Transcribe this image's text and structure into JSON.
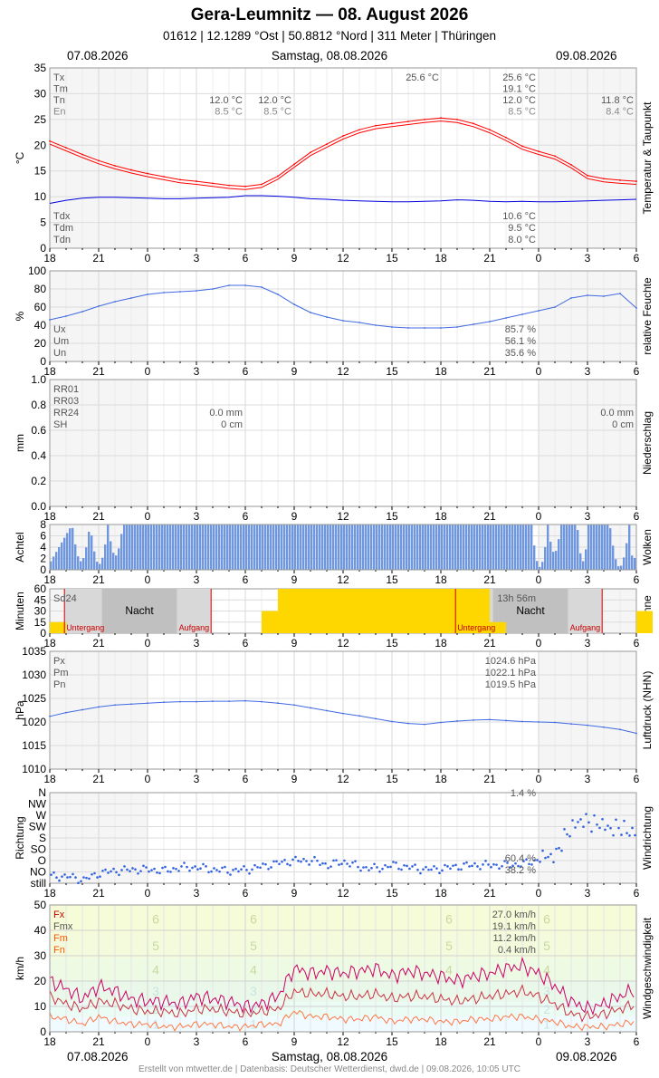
{
  "title": "Gera-Leumnitz  —  08. August 2026",
  "subtitle": "01612  |  12.1289 °Ost  |  50.8812 °Nord  |  311 Meter  |  Thüringen",
  "dates": {
    "left": "07.08.2026",
    "center": "Samstag, 08.08.2026",
    "right": "09.08.2026"
  },
  "footer": "Erstellt von mtwetter.de | Datenbasis: Deutscher Wetterdienst, dwd.de | 09.08.2026, 10:05 UTC",
  "x_ticks": [
    "18",
    "21",
    "0",
    "3",
    "6",
    "9",
    "12",
    "15",
    "18",
    "21",
    "0",
    "3",
    "6"
  ],
  "colors": {
    "temp": "#ff0000",
    "dew": "#0000dd",
    "humidity": "#4169e1",
    "clouds": "#6f97e0",
    "sun": "#ffd700",
    "pressure": "#4169e1",
    "fx": "#cc0066",
    "fmx": "#cc3344",
    "fm": "#ff7744"
  },
  "chart_data": [
    {
      "id": "temperature",
      "type": "line",
      "ylabel": "°C",
      "side_label": "Temperatur & Taupunkt",
      "ylim": [
        0,
        35
      ],
      "yticks": [
        "0",
        "5",
        "10",
        "15",
        "20",
        "25",
        "30",
        "35"
      ],
      "x": [
        18,
        19,
        20,
        21,
        22,
        23,
        24,
        25,
        26,
        27,
        28,
        29,
        30,
        31,
        32,
        33,
        34,
        35,
        36,
        37,
        38,
        39,
        40,
        41,
        42,
        43,
        44,
        45,
        46,
        47,
        48,
        49,
        50,
        51,
        52,
        53,
        54
      ],
      "series": [
        {
          "name": "Temperatur",
          "values": [
            20.8,
            19.5,
            18.2,
            17.0,
            16.0,
            15.2,
            14.5,
            13.9,
            13.3,
            13.0,
            12.6,
            12.2,
            12.0,
            12.4,
            14.0,
            16.3,
            18.6,
            20.2,
            21.8,
            23.0,
            23.8,
            24.2,
            24.6,
            25.0,
            25.3,
            25.0,
            24.2,
            23.0,
            21.5,
            19.8,
            18.8,
            17.9,
            16.2,
            14.1,
            13.5,
            13.2,
            13.0
          ]
        },
        {
          "name": "Taupunkt",
          "values": [
            8.7,
            9.3,
            9.7,
            9.9,
            9.9,
            9.8,
            9.7,
            9.6,
            9.6,
            9.7,
            9.8,
            9.9,
            10.2,
            10.2,
            10.1,
            9.9,
            9.6,
            9.5,
            9.3,
            9.2,
            9.1,
            9.0,
            9.0,
            9.1,
            9.2,
            9.4,
            9.3,
            9.1,
            9.0,
            9.1,
            9.0,
            9.0,
            9.1,
            9.2,
            9.3,
            9.4,
            9.5
          ]
        }
      ],
      "labels_top": [
        {
          "name": "Tx",
          "day1": "",
          "day2": "25.6 °C",
          "day2b": "25.6 °C",
          "day3": ""
        },
        {
          "name": "Tm",
          "day1": "",
          "day2": "",
          "day2b": "19.1 °C",
          "day3": ""
        },
        {
          "name": "Tn",
          "day1": "12.0 °C",
          "day2": "12.0 °C",
          "day2b": "12.0 °C",
          "day3": "11.8 °C"
        },
        {
          "name": "En",
          "day1": "8.5 °C",
          "day2": "8.5 °C",
          "day2b": "8.5 °C",
          "day3": "8.4 °C"
        }
      ],
      "labels_bottom": [
        {
          "name": "Tdx",
          "value": "10.6 °C"
        },
        {
          "name": "Tdm",
          "value": "9.5 °C"
        },
        {
          "name": "Tdn",
          "value": "8.0 °C"
        }
      ]
    },
    {
      "id": "humidity",
      "type": "line",
      "ylabel": "%",
      "side_label": "relative Feuchte",
      "ylim": [
        0,
        100
      ],
      "yticks": [
        "0",
        "20",
        "40",
        "60",
        "80",
        "100"
      ],
      "x": [
        18,
        19,
        20,
        21,
        22,
        23,
        24,
        25,
        26,
        27,
        28,
        29,
        30,
        31,
        32,
        33,
        34,
        35,
        36,
        37,
        38,
        39,
        40,
        41,
        42,
        43,
        44,
        45,
        46,
        47,
        48,
        49,
        50,
        51,
        52,
        53,
        54
      ],
      "series": [
        {
          "name": "Feuchte",
          "values": [
            46,
            50,
            55,
            61,
            66,
            70,
            74,
            76,
            77,
            78,
            80,
            84,
            84,
            82,
            74,
            63,
            54,
            49,
            45,
            43,
            40,
            38,
            37,
            37,
            37,
            38,
            41,
            44,
            48,
            52,
            56,
            60,
            70,
            73,
            72,
            75,
            59
          ]
        }
      ],
      "labels": [
        {
          "name": "Ux",
          "value": "85.7 %"
        },
        {
          "name": "Um",
          "value": "56.1 %"
        },
        {
          "name": "Un",
          "value": "35.6 %"
        }
      ]
    },
    {
      "id": "precipitation",
      "type": "bar",
      "ylabel": "mm",
      "side_label": "Niederschlag",
      "ylim": [
        0,
        1.0
      ],
      "yticks": [
        "0.0",
        "0.2",
        "0.4",
        "0.6",
        "0.8",
        "1.0"
      ],
      "labels": [
        {
          "name": "RR01",
          "day1": "",
          "day3": ""
        },
        {
          "name": "RR03",
          "day1": "",
          "day3": ""
        },
        {
          "name": "RR24",
          "day1": "0.0 mm",
          "day3": "0.0 mm"
        },
        {
          "name": "SH",
          "day1": "0 cm",
          "day3": "0 cm"
        }
      ]
    },
    {
      "id": "clouds",
      "type": "bar",
      "ylabel": "Achtel",
      "side_label": "Wolken",
      "ylim": [
        0,
        8
      ],
      "yticks": [
        "0",
        "2",
        "4",
        "6",
        "8"
      ]
    },
    {
      "id": "sun",
      "type": "bar",
      "ylabel": "Minuten",
      "side_label": "Sonne",
      "ylim": [
        0,
        60
      ],
      "yticks": [
        "0",
        "15",
        "30",
        "45",
        "60"
      ],
      "x": [
        18,
        19,
        20,
        21,
        22,
        23,
        24,
        25,
        26,
        27,
        28,
        29,
        30,
        31,
        32,
        33,
        34,
        35,
        36,
        37,
        38,
        39,
        40,
        41,
        42,
        43,
        44,
        45,
        46,
        47,
        48,
        49,
        50,
        51,
        52,
        53,
        54
      ],
      "values": [
        15,
        0,
        0,
        0,
        0,
        0,
        0,
        0,
        0,
        0,
        0,
        0,
        0,
        30,
        60,
        60,
        60,
        60,
        60,
        60,
        60,
        60,
        60,
        60,
        60,
        60,
        60,
        15,
        0,
        0,
        0,
        0,
        0,
        0,
        0,
        0,
        30
      ],
      "labels": {
        "sd24": "Sd24",
        "sd24_value": "13h 56m",
        "night": "Nacht",
        "sunset": "Untergang",
        "sunrise": "Aufgang"
      }
    },
    {
      "id": "pressure",
      "type": "line",
      "ylabel": "hPa",
      "side_label": "Luftdruck (NHN)",
      "ylim": [
        1010,
        1035
      ],
      "yticks": [
        "1010",
        "1015",
        "1020",
        "1025",
        "1030",
        "1035"
      ],
      "x": [
        18,
        19,
        20,
        21,
        22,
        23,
        24,
        25,
        26,
        27,
        28,
        29,
        30,
        31,
        32,
        33,
        34,
        35,
        36,
        37,
        38,
        39,
        40,
        41,
        42,
        43,
        44,
        45,
        46,
        47,
        48,
        49,
        50,
        51,
        52,
        53,
        54
      ],
      "series": [
        {
          "name": "Luftdruck",
          "values": [
            1021.2,
            1022.0,
            1022.6,
            1023.2,
            1023.6,
            1023.8,
            1024.0,
            1024.2,
            1024.3,
            1024.3,
            1024.4,
            1024.4,
            1024.5,
            1024.3,
            1024.0,
            1023.6,
            1023.0,
            1022.4,
            1021.8,
            1021.3,
            1020.7,
            1020.1,
            1019.7,
            1019.5,
            1019.9,
            1020.2,
            1020.4,
            1020.5,
            1020.3,
            1020.1,
            1020.0,
            1019.9,
            1019.6,
            1019.3,
            1018.9,
            1018.4,
            1017.6
          ]
        }
      ],
      "labels": [
        {
          "name": "Px",
          "value": "1024.6 hPa"
        },
        {
          "name": "Pm",
          "value": "1022.1 hPa"
        },
        {
          "name": "Pn",
          "value": "1019.5 hPa"
        }
      ]
    },
    {
      "id": "wind_direction",
      "type": "scatter",
      "ylabel": "Richtung",
      "side_label": "Windrichtung",
      "yticks": [
        "still",
        "NO",
        "O",
        "SO",
        "S",
        "SW",
        "W",
        "NW",
        "N"
      ],
      "x": [
        18,
        19,
        20,
        21,
        22,
        23,
        24,
        25,
        26,
        27,
        28,
        29,
        30,
        31,
        32,
        33,
        34,
        35,
        36,
        37,
        38,
        39,
        40,
        41,
        42,
        43,
        44,
        45,
        46,
        47,
        48,
        49,
        50,
        51,
        52,
        53,
        54
      ],
      "values": [
        0.6,
        0.6,
        0.3,
        0.9,
        1.1,
        1.2,
        1.2,
        1.1,
        1.4,
        1.4,
        1.2,
        1.1,
        1.2,
        1.5,
        1.8,
        2.0,
        2.0,
        1.6,
        1.9,
        1.4,
        1.3,
        1.6,
        1.4,
        1.2,
        1.3,
        1.5,
        1.6,
        1.6,
        1.6,
        1.7,
        2.1,
        2.6,
        5.2,
        5.5,
        5.0,
        4.8,
        4.5
      ],
      "labels": [
        {
          "name": "",
          "value": "1.4 %"
        },
        {
          "name": "",
          "value": "60.4 %"
        },
        {
          "name": "",
          "value": "38.2 %"
        }
      ]
    },
    {
      "id": "wind_speed",
      "type": "line",
      "ylabel": "km/h",
      "side_label": "Windgeschwindigkeit",
      "ylim": [
        0,
        50
      ],
      "yticks": [
        "0",
        "10",
        "20",
        "30",
        "40",
        "50"
      ],
      "x": [
        18,
        19,
        20,
        21,
        22,
        23,
        24,
        25,
        26,
        27,
        28,
        29,
        30,
        31,
        32,
        33,
        34,
        35,
        36,
        37,
        38,
        39,
        40,
        41,
        42,
        43,
        44,
        45,
        46,
        47,
        48,
        49,
        50,
        51,
        52,
        53,
        54
      ],
      "series": [
        {
          "name": "Fx",
          "values": [
            20,
            17,
            13,
            18,
            16,
            13,
            12,
            12,
            11,
            14,
            13,
            12,
            10,
            11,
            14,
            25,
            23,
            24,
            23,
            24,
            25,
            22,
            24,
            23,
            22,
            20,
            22,
            23,
            25,
            26,
            23,
            18,
            12,
            9,
            11,
            14,
            17
          ]
        },
        {
          "name": "Fmx",
          "values": [
            14,
            11,
            9,
            12,
            11,
            9,
            8,
            8,
            7,
            9,
            9,
            8,
            7,
            8,
            9,
            16,
            15,
            15,
            14,
            14,
            15,
            13,
            14,
            14,
            13,
            12,
            13,
            14,
            15,
            16,
            14,
            11,
            7,
            6,
            7,
            9,
            11
          ]
        },
        {
          "name": "Fm",
          "values": [
            6,
            5,
            3,
            6,
            4,
            3,
            3,
            2,
            2,
            3,
            3,
            2,
            2,
            3,
            3,
            8,
            6,
            6,
            5,
            5,
            6,
            4,
            5,
            5,
            4,
            4,
            5,
            5,
            6,
            6,
            5,
            4,
            2,
            2,
            2,
            3,
            4
          ]
        }
      ],
      "beaufort": [
        "1",
        "2",
        "3",
        "4",
        "5",
        "6"
      ],
      "labels": [
        {
          "name": "Fx",
          "value": "27.0 km/h"
        },
        {
          "name": "Fmx",
          "value": "19.1 km/h"
        },
        {
          "name": "Fm",
          "value": "11.2 km/h"
        },
        {
          "name": "Fn",
          "value": "0.4 km/h"
        }
      ]
    }
  ]
}
